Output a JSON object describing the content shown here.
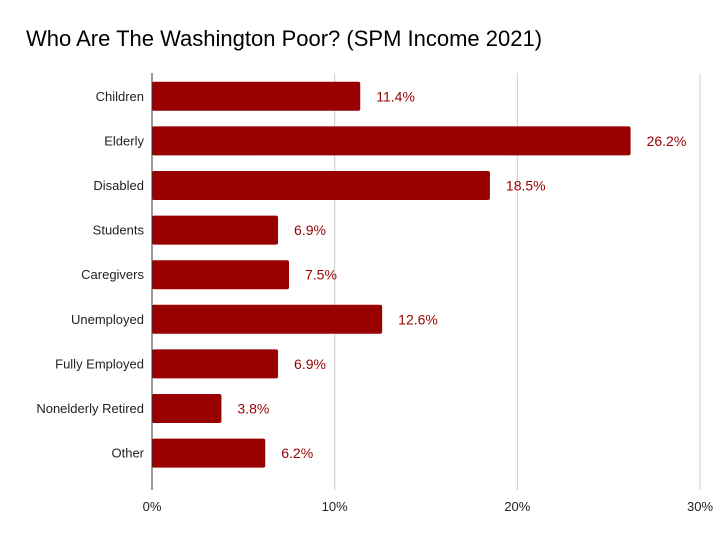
{
  "chart_data": {
    "type": "bar",
    "orientation": "horizontal",
    "title": "Who Are The Washington Poor? (SPM Income 2021)",
    "xlabel": "",
    "ylabel": "",
    "categories": [
      "Children",
      "Elderly",
      "Disabled",
      "Students",
      "Caregivers",
      "Unemployed",
      "Fully Employed",
      "Nonelderly Retired",
      "Other"
    ],
    "values": [
      11.4,
      26.2,
      18.5,
      6.9,
      7.5,
      12.6,
      6.9,
      3.8,
      6.2
    ],
    "data_labels": [
      "11.4%",
      "26.2%",
      "18.5%",
      "6.9%",
      "7.5%",
      "12.6%",
      "6.9%",
      "3.8%",
      "6.2%"
    ],
    "xlim": [
      0,
      30
    ],
    "x_ticks": [
      0,
      10,
      20,
      30
    ],
    "x_tick_labels": [
      "0%",
      "10%",
      "20%",
      "30%"
    ],
    "grid": true,
    "legend": "none",
    "bar_color": "#990000",
    "label_color": "#990000"
  }
}
